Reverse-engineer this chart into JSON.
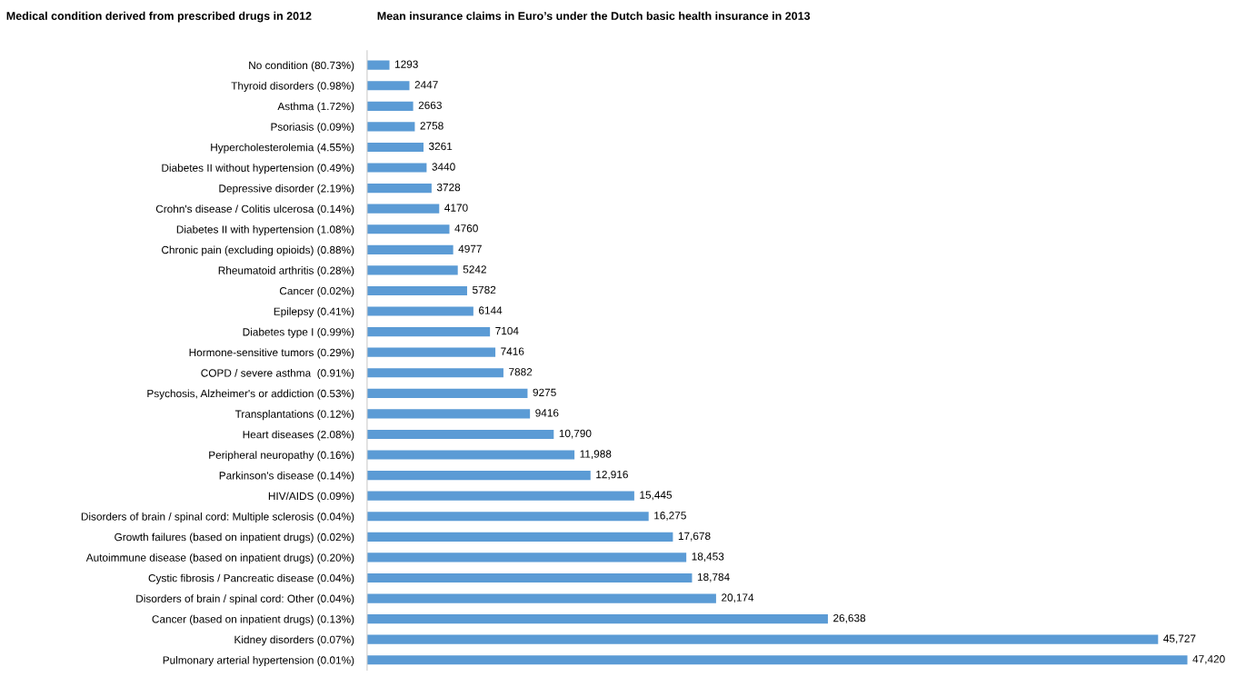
{
  "chart_data": {
    "type": "bar",
    "orientation": "horizontal",
    "title": "Mean insurance claims in Euro’s under the Dutch basic health insurance in 2013",
    "ylabel": "Medical condition derived from prescribed drugs in 2012",
    "categories": [
      "No condition (80.73%)",
      "Thyroid disorders (0.98%)",
      "Asthma (1.72%)",
      "Psoriasis (0.09%)",
      "Hypercholesterolemia (4.55%)",
      "Diabetes II without hypertension (0.49%)",
      "Depressive disorder (2.19%)",
      "Crohn's disease / Colitis ulcerosa (0.14%)",
      "Diabetes II with hypertension (1.08%)",
      "Chronic pain (excluding opioids) (0.88%)",
      "Rheumatoid arthritis (0.28%)",
      "Cancer (0.02%)",
      "Epilepsy (0.41%)",
      "Diabetes type I (0.99%)",
      "Hormone-sensitive tumors (0.29%)",
      "COPD / severe asthma  (0.91%)",
      "Psychosis, Alzheimer's or addiction (0.53%)",
      "Transplantations (0.12%)",
      "Heart diseases (2.08%)",
      "Peripheral neuropathy (0.16%)",
      "Parkinson's disease (0.14%)",
      "HIV/AIDS (0.09%)",
      "Disorders of brain / spinal cord: Multiple sclerosis (0.04%)",
      "Growth failures (based on inpatient drugs) (0.02%)",
      "Autoimmune disease (based on inpatient drugs) (0.20%)",
      "Cystic fibrosis / Pancreatic disease (0.04%)",
      "Disorders of brain / spinal cord: Other (0.04%)",
      "Cancer (based on inpatient drugs) (0.13%)",
      "Kidney disorders (0.07%)",
      "Pulmonary arterial hypertension (0.01%)"
    ],
    "values": [
      1293,
      2447,
      2663,
      2758,
      3261,
      3440,
      3728,
      4170,
      4760,
      4977,
      5242,
      5782,
      6144,
      7104,
      7416,
      7882,
      9275,
      9416,
      10790,
      11988,
      12916,
      15445,
      16275,
      17678,
      18453,
      18784,
      20174,
      26638,
      45727,
      47420
    ],
    "value_labels": [
      "1293",
      "2447",
      "2663",
      "2758",
      "3261",
      "3440",
      "3728",
      "4170",
      "4760",
      "4977",
      "5242",
      "5782",
      "6144",
      "7104",
      "7416",
      "7882",
      "9275",
      "9416",
      "10,790",
      "11,988",
      "12,916",
      "15,445",
      "16,275",
      "17,678",
      "18,453",
      "18,784",
      "20,174",
      "26,638",
      "45,727",
      "47,420"
    ],
    "color": "#5b9bd5"
  }
}
